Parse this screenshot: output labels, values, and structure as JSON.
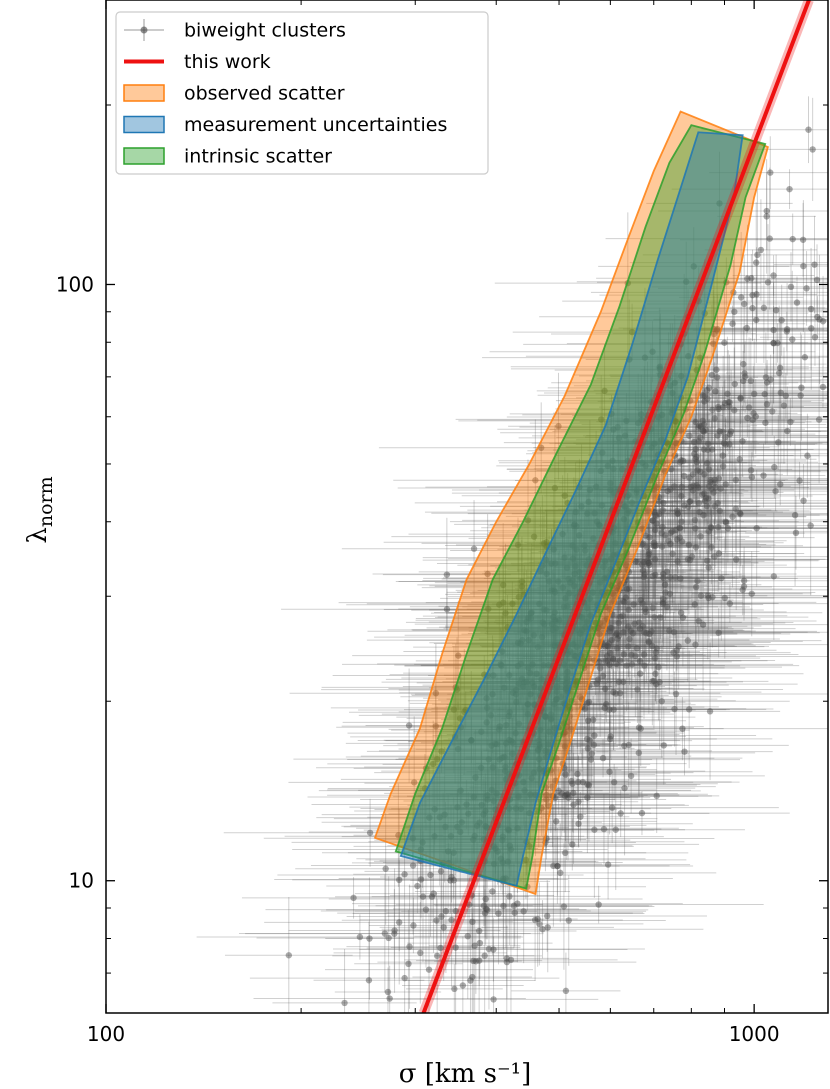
{
  "chart_data": {
    "type": "scatter",
    "xlabel": "σ [km s⁻¹]",
    "ylabel_main": "λ",
    "ylabel_sub": "norm",
    "xscale": "log",
    "yscale": "log",
    "xlim": [
      100,
      1300
    ],
    "ylim": [
      6.0,
      300
    ],
    "x_ticks": [
      {
        "value": 100,
        "label": "100"
      },
      {
        "value": 1000,
        "label": "1000"
      }
    ],
    "y_ticks": [
      {
        "value": 10,
        "label": "10"
      },
      {
        "value": 100,
        "label": "100"
      }
    ],
    "grid": false,
    "legend_position": "top-left",
    "legend": [
      {
        "label": "biweight clusters",
        "kind": "errorbar",
        "color": "#555555"
      },
      {
        "label": "this work",
        "kind": "line",
        "color": "#ee1111"
      },
      {
        "label": "observed scatter",
        "kind": "patch",
        "color": "#ff7f0e"
      },
      {
        "label": "measurement uncertainties",
        "kind": "patch",
        "color": "#1f77b4"
      },
      {
        "label": "intrinsic scatter",
        "kind": "patch",
        "color": "#2ca02c"
      }
    ],
    "fit_line": {
      "name": "this work",
      "color": "#ee1111",
      "points": [
        [
          309,
          6.0
        ],
        [
          1215,
          300
        ]
      ]
    },
    "bands": [
      {
        "name": "observed scatter",
        "color": "#ff7f0e",
        "upper": [
          [
            260,
            11.8
          ],
          [
            275,
            14
          ],
          [
            305,
            18
          ],
          [
            330,
            24
          ],
          [
            360,
            32
          ],
          [
            400,
            40
          ],
          [
            450,
            50
          ],
          [
            510,
            65
          ],
          [
            580,
            90
          ],
          [
            640,
            120
          ],
          [
            700,
            155
          ],
          [
            770,
            195
          ]
        ],
        "lower": [
          [
            460,
            9.5
          ],
          [
            470,
            11
          ],
          [
            490,
            14
          ],
          [
            520,
            17
          ],
          [
            560,
            22
          ],
          [
            600,
            28
          ],
          [
            660,
            36
          ],
          [
            730,
            48
          ],
          [
            800,
            60
          ],
          [
            860,
            75
          ],
          [
            950,
            105
          ],
          [
            1000,
            140
          ],
          [
            1050,
            170
          ]
        ]
      },
      {
        "name": "intrinsic scatter",
        "color": "#2ca02c",
        "upper": [
          [
            280,
            11.2
          ],
          [
            300,
            14
          ],
          [
            330,
            18
          ],
          [
            360,
            24
          ],
          [
            395,
            32
          ],
          [
            440,
            40
          ],
          [
            495,
            52
          ],
          [
            560,
            68
          ],
          [
            620,
            92
          ],
          [
            680,
            125
          ],
          [
            740,
            160
          ],
          [
            800,
            185
          ]
        ],
        "lower": [
          [
            445,
            9.7
          ],
          [
            455,
            11
          ],
          [
            470,
            14
          ],
          [
            500,
            17
          ],
          [
            540,
            22
          ],
          [
            580,
            28
          ],
          [
            640,
            36
          ],
          [
            710,
            48
          ],
          [
            780,
            61
          ],
          [
            840,
            77
          ],
          [
            920,
            108
          ],
          [
            970,
            140
          ],
          [
            1040,
            172
          ]
        ]
      },
      {
        "name": "measurement uncertainties",
        "color": "#1f77b4",
        "upper": [
          [
            285,
            11
          ],
          [
            305,
            13.5
          ],
          [
            345,
            17.5
          ],
          [
            385,
            22
          ],
          [
            430,
            28
          ],
          [
            480,
            36
          ],
          [
            530,
            45
          ],
          [
            590,
            58
          ],
          [
            650,
            80
          ],
          [
            710,
            110
          ],
          [
            770,
            145
          ],
          [
            820,
            180
          ]
        ],
        "lower": [
          [
            430,
            9.8
          ],
          [
            440,
            11
          ],
          [
            460,
            13.5
          ],
          [
            490,
            17
          ],
          [
            520,
            21
          ],
          [
            560,
            27
          ],
          [
            610,
            34
          ],
          [
            670,
            44
          ],
          [
            730,
            55
          ],
          [
            790,
            70
          ],
          [
            860,
            100
          ],
          [
            930,
            140
          ],
          [
            960,
            178
          ]
        ]
      }
    ],
    "series": [
      {
        "name": "biweight clusters",
        "n_points": 1200,
        "x_center": 580,
        "x_logsigma": 0.16,
        "slope": 1.58,
        "y_ref": 27,
        "y_logsigma": 0.16
      }
    ]
  }
}
